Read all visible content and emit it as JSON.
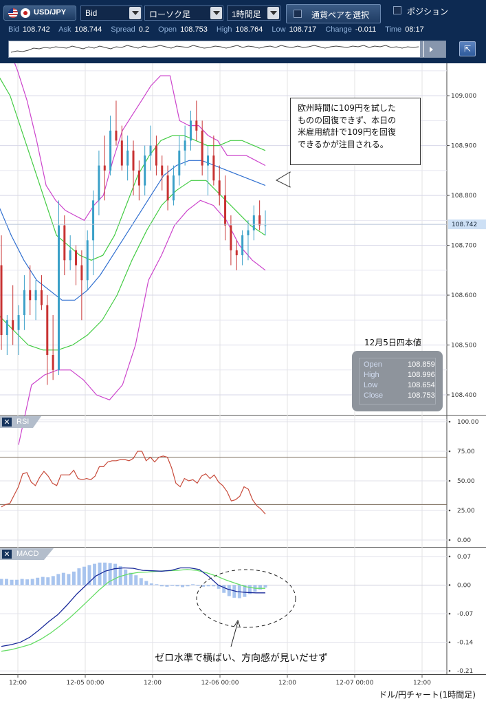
{
  "toolbar": {
    "symbol": "USD/JPY",
    "price_type": "Bid",
    "chart_type": "ローソク足",
    "timeframe": "1時間足",
    "pair_select_label": "通貨ペアを選択",
    "position_label": "ポジション"
  },
  "quote": {
    "bid_label": "Bid",
    "bid": "108.742",
    "ask_label": "Ask",
    "ask": "108.744",
    "spread_label": "Spread",
    "spread": "0.2",
    "open_label": "Open",
    "open": "108.753",
    "high_label": "High",
    "high": "108.764",
    "low_label": "Low",
    "low": "108.717",
    "change_label": "Change",
    "change": "-0.011",
    "time_label": "Time",
    "time": "08:17"
  },
  "annotation": {
    "lines": [
      "欧州時間に109円を試した",
      "ものの回復できず、本日の",
      "米雇用統計で109円を回復",
      "できるかが注目される。"
    ]
  },
  "ohlc": {
    "title": "12月5日四本値",
    "open_label": "Open",
    "open": "108.859",
    "high_label": "High",
    "high": "108.996",
    "low_label": "Low",
    "low": "108.654",
    "close_label": "Close",
    "close": "108.753"
  },
  "panels": {
    "rsi_label": "RSI",
    "macd_label": "MACD"
  },
  "macd_note": "ゼロ水準で横ばい、方向感が見いだせず",
  "footer_caption": "ドル/円チャート(1時間足)",
  "colors": {
    "toolbar_bg": "#0d2a52",
    "up": "#3aa0c8",
    "down": "#c83232",
    "bb_outer": "#cc44cc",
    "bb_inner": "#44cc44",
    "ma": "#2f6fd0",
    "rsi": "#c84a3a",
    "macd": "#1a2a9a",
    "signal": "#66dd66",
    "hist": "#a8c4ee",
    "last_price": "#cde0f5"
  },
  "chart_data": [
    {
      "type": "candlestick",
      "title": "",
      "price_axis_ticks": [
        "109.000",
        "108.900",
        "108.800",
        "108.700",
        "108.600",
        "108.500",
        "108.400"
      ],
      "last_price_label": "108.742",
      "time_axis_ticks": [
        "12:00",
        "12-05 00:00",
        "12:00",
        "12-06 00:00",
        "12:00",
        "12-07 00:00",
        "12:00"
      ],
      "candles": [
        [
          108.66,
          108.72,
          108.49,
          108.52
        ],
        [
          108.52,
          108.56,
          108.48,
          108.55
        ],
        [
          108.55,
          108.62,
          108.5,
          108.53
        ],
        [
          108.53,
          108.58,
          108.48,
          108.56
        ],
        [
          108.56,
          108.64,
          108.53,
          108.61
        ],
        [
          108.61,
          108.66,
          108.56,
          108.59
        ],
        [
          108.59,
          108.63,
          108.55,
          108.61
        ],
        [
          108.61,
          108.64,
          108.57,
          108.58
        ],
        [
          108.58,
          108.6,
          108.42,
          108.48
        ],
        [
          108.48,
          108.56,
          108.43,
          108.45
        ],
        [
          108.45,
          108.79,
          108.44,
          108.74
        ],
        [
          108.74,
          108.76,
          108.64,
          108.67
        ],
        [
          108.67,
          108.72,
          108.65,
          108.69
        ],
        [
          108.69,
          108.7,
          108.62,
          108.66
        ],
        [
          108.66,
          108.69,
          108.55,
          108.63
        ],
        [
          108.63,
          108.73,
          108.61,
          108.71
        ],
        [
          108.71,
          108.81,
          108.64,
          108.79
        ],
        [
          108.79,
          108.89,
          108.76,
          108.86
        ],
        [
          108.86,
          108.92,
          108.79,
          108.85
        ],
        [
          108.85,
          108.96,
          108.84,
          108.93
        ],
        [
          108.93,
          108.99,
          108.9,
          108.91
        ],
        [
          108.91,
          108.94,
          108.85,
          108.86
        ],
        [
          108.86,
          108.92,
          108.83,
          108.89
        ],
        [
          108.89,
          108.91,
          108.8,
          108.85
        ],
        [
          108.85,
          108.87,
          108.79,
          108.82
        ],
        [
          108.82,
          108.9,
          108.8,
          108.88
        ],
        [
          108.88,
          108.94,
          108.85,
          108.9
        ],
        [
          108.9,
          108.92,
          108.84,
          108.86
        ],
        [
          108.86,
          108.88,
          108.81,
          108.84
        ],
        [
          108.84,
          108.86,
          108.77,
          108.79
        ],
        [
          108.79,
          108.86,
          108.78,
          108.84
        ],
        [
          108.84,
          108.92,
          108.82,
          108.89
        ],
        [
          108.89,
          108.94,
          108.86,
          108.91
        ],
        [
          108.91,
          108.97,
          108.89,
          108.95
        ],
        [
          108.95,
          108.99,
          108.91,
          108.93
        ],
        [
          108.93,
          108.95,
          108.84,
          108.86
        ],
        [
          108.86,
          108.9,
          108.8,
          108.88
        ],
        [
          108.88,
          108.92,
          108.82,
          108.83
        ],
        [
          108.83,
          108.86,
          108.78,
          108.8
        ],
        [
          108.8,
          108.84,
          108.71,
          108.74
        ],
        [
          108.74,
          108.76,
          108.66,
          108.69
        ],
        [
          108.69,
          108.71,
          108.65,
          108.68
        ],
        [
          108.68,
          108.73,
          108.66,
          108.72
        ],
        [
          108.72,
          108.75,
          108.67,
          108.73
        ],
        [
          108.73,
          108.78,
          108.71,
          108.76
        ],
        [
          108.76,
          108.79,
          108.73,
          108.74
        ],
        [
          108.74,
          108.77,
          108.72,
          108.74
        ]
      ],
      "bollinger_upper": [
        109.14,
        109.1,
        109.05,
        108.99,
        108.91,
        108.82,
        108.79,
        108.77,
        108.76,
        108.75,
        108.78,
        108.8,
        108.87,
        108.93,
        108.96,
        108.99,
        109.02,
        109.04,
        109.04,
        108.95,
        108.94,
        108.94,
        108.92,
        108.91,
        108.88,
        108.88,
        108.88,
        108.87,
        108.86
      ],
      "bollinger_mid_upper": [
        109.04,
        109.0,
        108.93,
        108.86,
        108.79,
        108.72,
        108.7,
        108.68,
        108.67,
        108.68,
        108.72,
        108.78,
        108.84,
        108.88,
        108.91,
        108.92,
        108.92,
        108.91,
        108.9,
        108.9,
        108.91,
        108.91,
        108.9,
        108.89
      ],
      "moving_average": [
        108.78,
        108.72,
        108.67,
        108.63,
        108.61,
        108.59,
        108.59,
        108.61,
        108.64,
        108.68,
        108.72,
        108.76,
        108.8,
        108.84,
        108.86,
        108.87,
        108.87,
        108.86,
        108.85,
        108.84,
        108.83,
        108.82
      ],
      "bollinger_mid_lower": [
        108.56,
        108.53,
        108.5,
        108.49,
        108.49,
        108.5,
        108.52,
        108.55,
        108.6,
        108.67,
        108.73,
        108.78,
        108.81,
        108.83,
        108.83,
        108.8,
        108.77,
        108.74,
        108.72
      ],
      "bollinger_lower": [
        108.3,
        108.42,
        108.44,
        108.45,
        108.45,
        108.43,
        108.4,
        108.39,
        108.42,
        108.5,
        108.63,
        108.68,
        108.74,
        108.77,
        108.79,
        108.78,
        108.75,
        108.7,
        108.67,
        108.65
      ]
    },
    {
      "type": "line",
      "title": "RSI",
      "y_axis_ticks": [
        "100.00",
        "75.00",
        "50.00",
        "25.00",
        "0.00"
      ],
      "levels": [
        70,
        30
      ],
      "values": [
        28,
        30,
        31,
        38,
        45,
        56,
        57,
        49,
        46,
        53,
        58,
        54,
        48,
        46,
        55,
        55,
        55,
        59,
        52,
        51,
        52,
        51,
        54,
        62,
        62,
        66,
        67,
        67,
        68,
        68,
        67,
        69,
        75,
        75,
        67,
        70,
        66,
        70,
        71,
        70,
        61,
        48,
        45,
        52,
        50,
        51,
        48,
        54,
        56,
        52,
        55,
        49,
        46,
        41,
        33,
        34,
        37,
        45,
        43,
        34,
        29,
        26,
        22
      ]
    },
    {
      "type": "line",
      "title": "MACD",
      "y_axis_ticks": [
        "0.07",
        "0.00",
        "-0.07",
        "-0.14",
        "-0.21"
      ],
      "macd": [
        -0.15,
        -0.146,
        -0.14,
        -0.128,
        -0.11,
        -0.09,
        -0.072,
        -0.048,
        -0.022,
        0.0,
        0.022,
        0.034,
        0.04,
        0.042,
        0.041,
        0.036,
        0.035,
        0.034,
        0.036,
        0.042,
        0.042,
        0.038,
        0.021,
        0.0,
        -0.01,
        -0.016,
        -0.018,
        -0.019,
        -0.019
      ],
      "signal": [
        -0.162,
        -0.158,
        -0.152,
        -0.145,
        -0.133,
        -0.118,
        -0.1,
        -0.08,
        -0.058,
        -0.035,
        -0.012,
        0.008,
        0.02,
        0.027,
        0.031,
        0.032,
        0.034,
        0.035,
        0.036,
        0.038,
        0.036,
        0.03,
        0.022,
        0.012,
        0.004,
        -0.004,
        -0.008,
        -0.008
      ],
      "histogram": [
        0.015,
        0.015,
        0.013,
        0.013,
        0.015,
        0.014,
        0.015,
        0.018,
        0.02,
        0.019,
        0.022,
        0.027,
        0.03,
        0.027,
        0.033,
        0.041,
        0.045,
        0.049,
        0.052,
        0.055,
        0.055,
        0.054,
        0.052,
        0.046,
        0.038,
        0.03,
        0.024,
        0.017,
        0.01,
        0.004,
        0.002,
        -0.003,
        -0.004,
        -0.002,
        -0.003,
        -0.005,
        -0.003,
        0.002,
        -0.002,
        -0.004,
        -0.003,
        -0.003,
        -0.009,
        -0.019,
        -0.027,
        -0.031,
        -0.032,
        -0.029,
        -0.022,
        -0.016,
        -0.011,
        -0.006
      ]
    }
  ]
}
